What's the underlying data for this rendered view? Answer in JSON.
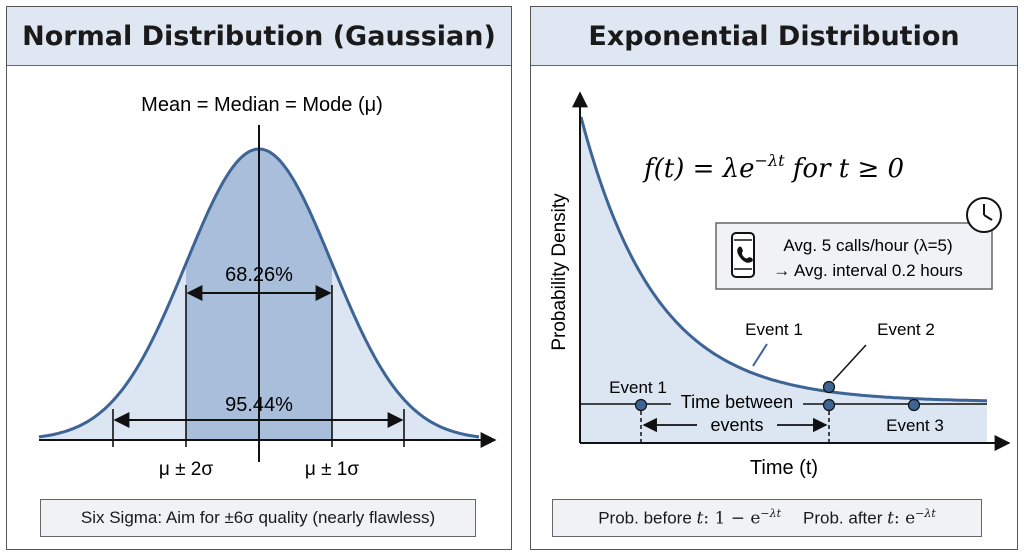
{
  "normal": {
    "title": "Normal Distribution (Gaussian)",
    "center_label": "Mean = Median = Mode (μ)",
    "inner_band_label": "68.26%",
    "outer_band_label": "95.44%",
    "tick_2sigma": "μ ± 2σ",
    "tick_1sigma": "μ ± 1σ",
    "footer": "Six Sigma: Aim for ±6σ quality (nearly flawless)"
  },
  "exponential": {
    "title": "Exponential Distribution",
    "formula_lhs": "f(t) = λe",
    "formula_exp": "−λt",
    "formula_rhs": " for t ≥ 0",
    "y_axis_label": "Probability Density",
    "x_axis_label": "Time (t)",
    "info_line1": "Avg. 5 calls/hour (λ=5)",
    "info_line2": "→ Avg. interval 0.2 hours",
    "event1_curve_label": "Event 1",
    "event2_label": "Event 2",
    "event1_line_label": "Event 1",
    "event3_label": "Event 3",
    "time_between_line1": "Time between",
    "time_between_line2": "events",
    "footer_before_prefix": "Prob. before ",
    "footer_before_var": "t",
    "footer_before_expr": ": 1 − e",
    "footer_before_exp": "−λt",
    "footer_after_prefix": "Prob. after ",
    "footer_after_var": "t",
    "footer_after_expr": ": e",
    "footer_after_exp": "−λt"
  },
  "colors": {
    "curve": "#3d6494",
    "fill_light": "#dbe6f2",
    "fill_dark": "#a9bedb",
    "header_bg": "#dfe8f2",
    "dot": "#3d6494"
  },
  "icons": [
    "phone-icon",
    "clock-icon"
  ]
}
